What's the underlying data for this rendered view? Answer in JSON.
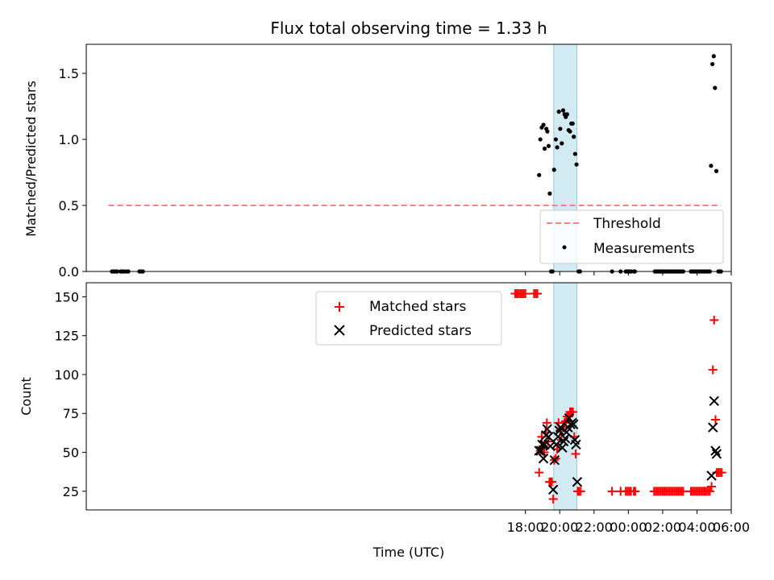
{
  "chart_data": [
    {
      "type": "scatter",
      "title": "Flux total observing time = 1.33 h",
      "ylabel": "Matched/Predicted stars",
      "xlim": [
        -7.6,
        30.0
      ],
      "ylim": [
        0,
        1.72
      ],
      "yticks": [
        0.0,
        0.5,
        1.0,
        1.5
      ],
      "ytick_labels": [
        "0.0",
        "0.5",
        "1.0",
        "1.5"
      ],
      "shaded_region": {
        "x": [
          19.65,
          21.0
        ],
        "color": "#add8e6"
      },
      "legend_position": "lower right",
      "threshold": {
        "name": "Threshold",
        "y": 0.5,
        "x": [
          -6.3,
          29.4
        ],
        "color": "#ff8080"
      },
      "series": [
        {
          "name": "Measurements",
          "color": "#000000",
          "marker": "dot",
          "points": [
            [
              -6.1,
              0
            ],
            [
              -6.0,
              0
            ],
            [
              -5.9,
              0
            ],
            [
              -5.8,
              0
            ],
            [
              -5.6,
              0
            ],
            [
              -5.5,
              0
            ],
            [
              -5.4,
              0
            ],
            [
              -5.25,
              0
            ],
            [
              -5.15,
              0
            ],
            [
              -4.5,
              0
            ],
            [
              -4.4,
              0
            ],
            [
              -4.3,
              0
            ],
            [
              18.8,
              0.73
            ],
            [
              18.87,
              1.0
            ],
            [
              18.95,
              1.09
            ],
            [
              19.05,
              1.11
            ],
            [
              19.12,
              0.93
            ],
            [
              19.22,
              1.08
            ],
            [
              19.28,
              1.06
            ],
            [
              19.35,
              0.95
            ],
            [
              19.42,
              0.59
            ],
            [
              19.5,
              0
            ],
            [
              19.58,
              0
            ],
            [
              19.67,
              0.77
            ],
            [
              19.77,
              1.0
            ],
            [
              19.85,
              0.94
            ],
            [
              19.95,
              1.21
            ],
            [
              20.03,
              1.08
            ],
            [
              20.12,
              0.97
            ],
            [
              20.2,
              1.22
            ],
            [
              20.28,
              1.19
            ],
            [
              20.35,
              1.17
            ],
            [
              20.43,
              1.19
            ],
            [
              20.52,
              1.07
            ],
            [
              20.6,
              1.06
            ],
            [
              20.68,
              1.12
            ],
            [
              20.75,
              1.12
            ],
            [
              20.82,
              1.02
            ],
            [
              20.9,
              0.89
            ],
            [
              20.98,
              0.81
            ],
            [
              21.1,
              0
            ],
            [
              21.18,
              0
            ],
            [
              23.05,
              0
            ],
            [
              23.55,
              0
            ],
            [
              23.85,
              0
            ],
            [
              23.95,
              0
            ],
            [
              24.0,
              0
            ],
            [
              24.08,
              0
            ],
            [
              24.15,
              0
            ],
            [
              24.32,
              0
            ],
            [
              24.38,
              0
            ],
            [
              25.55,
              0
            ],
            [
              25.63,
              0
            ],
            [
              25.7,
              0
            ],
            [
              25.78,
              0
            ],
            [
              25.85,
              0
            ],
            [
              25.92,
              0
            ],
            [
              26.0,
              0
            ],
            [
              26.1,
              0
            ],
            [
              26.2,
              0
            ],
            [
              26.3,
              0
            ],
            [
              26.4,
              0
            ],
            [
              26.5,
              0
            ],
            [
              26.6,
              0
            ],
            [
              26.7,
              0
            ],
            [
              26.8,
              0
            ],
            [
              26.9,
              0
            ],
            [
              27.0,
              0
            ],
            [
              27.1,
              0
            ],
            [
              27.2,
              0
            ],
            [
              27.65,
              0
            ],
            [
              27.75,
              0
            ],
            [
              27.85,
              0
            ],
            [
              27.95,
              0
            ],
            [
              28.05,
              0
            ],
            [
              28.15,
              0
            ],
            [
              28.25,
              0
            ],
            [
              28.35,
              0
            ],
            [
              28.45,
              0
            ],
            [
              28.55,
              0
            ],
            [
              28.65,
              0
            ],
            [
              28.75,
              0
            ],
            [
              28.82,
              0.8
            ],
            [
              28.9,
              1.57
            ],
            [
              28.98,
              1.63
            ],
            [
              29.05,
              1.39
            ],
            [
              29.13,
              0.76
            ],
            [
              29.25,
              0
            ],
            [
              29.32,
              0
            ],
            [
              29.4,
              0
            ]
          ]
        }
      ]
    },
    {
      "type": "scatter",
      "xlabel": "Time (UTC)",
      "ylabel": "Count",
      "xlim": [
        -7.6,
        30.0
      ],
      "ylim": [
        13,
        159
      ],
      "xticks": [
        18,
        20,
        22,
        24,
        26,
        28,
        30
      ],
      "xtick_labels": [
        "18:00",
        "20:00",
        "22:00",
        "00:00",
        "02:00",
        "04:00",
        "06:00"
      ],
      "yticks": [
        25,
        50,
        75,
        100,
        125,
        150
      ],
      "ytick_labels": [
        "25",
        "50",
        "75",
        "100",
        "125",
        "150"
      ],
      "shaded_region": {
        "x": [
          19.65,
          21.0
        ],
        "color": "#add8e6"
      },
      "legend_position": "top-center",
      "series": [
        {
          "name": "Matched stars",
          "color": "#ff0000",
          "marker": "plus",
          "points": [
            [
              17.4,
              152
            ],
            [
              17.5,
              152
            ],
            [
              17.6,
              152
            ],
            [
              17.7,
              152
            ],
            [
              17.8,
              152
            ],
            [
              17.9,
              152
            ],
            [
              18.0,
              152
            ],
            [
              18.5,
              152
            ],
            [
              18.6,
              152
            ],
            [
              18.7,
              152
            ],
            [
              18.8,
              37
            ],
            [
              18.87,
              51
            ],
            [
              18.95,
              60
            ],
            [
              19.02,
              54
            ],
            [
              19.1,
              50
            ],
            [
              19.17,
              63
            ],
            [
              19.25,
              69
            ],
            [
              19.32,
              57
            ],
            [
              19.4,
              31
            ],
            [
              19.48,
              31
            ],
            [
              19.55,
              31
            ],
            [
              19.62,
              20
            ],
            [
              19.68,
              45
            ],
            [
              19.77,
              46
            ],
            [
              19.85,
              52
            ],
            [
              19.93,
              69
            ],
            [
              20.02,
              64
            ],
            [
              20.1,
              58
            ],
            [
              20.18,
              66
            ],
            [
              20.27,
              69
            ],
            [
              20.35,
              70
            ],
            [
              20.43,
              73
            ],
            [
              20.52,
              73
            ],
            [
              20.6,
              76
            ],
            [
              20.68,
              76
            ],
            [
              20.77,
              76
            ],
            [
              20.85,
              60
            ],
            [
              20.93,
              49
            ],
            [
              21.05,
              25
            ],
            [
              21.12,
              25
            ],
            [
              21.22,
              25
            ],
            [
              23.05,
              25
            ],
            [
              23.55,
              25
            ],
            [
              23.85,
              25
            ],
            [
              23.95,
              25
            ],
            [
              24.05,
              25
            ],
            [
              24.15,
              25
            ],
            [
              24.32,
              25
            ],
            [
              24.4,
              25
            ],
            [
              25.5,
              25
            ],
            [
              25.6,
              25
            ],
            [
              25.7,
              25
            ],
            [
              25.8,
              25
            ],
            [
              25.9,
              25
            ],
            [
              26.0,
              25
            ],
            [
              26.1,
              25
            ],
            [
              26.2,
              25
            ],
            [
              26.3,
              25
            ],
            [
              26.4,
              25
            ],
            [
              26.5,
              25
            ],
            [
              26.6,
              25
            ],
            [
              26.7,
              25
            ],
            [
              26.8,
              25
            ],
            [
              26.9,
              25
            ],
            [
              27.0,
              25
            ],
            [
              27.1,
              25
            ],
            [
              27.2,
              25
            ],
            [
              27.65,
              25
            ],
            [
              27.75,
              25
            ],
            [
              27.85,
              25
            ],
            [
              27.95,
              25
            ],
            [
              28.05,
              25
            ],
            [
              28.15,
              25
            ],
            [
              28.25,
              25
            ],
            [
              28.35,
              25
            ],
            [
              28.45,
              25
            ],
            [
              28.55,
              25
            ],
            [
              28.65,
              25
            ],
            [
              28.75,
              25
            ],
            [
              28.85,
              28
            ],
            [
              28.93,
              103
            ],
            [
              29.0,
              135
            ],
            [
              29.08,
              71
            ],
            [
              29.15,
              37
            ],
            [
              29.25,
              37
            ],
            [
              29.35,
              37
            ],
            [
              29.45,
              37
            ]
          ]
        },
        {
          "name": "Predicted stars",
          "color": "#000000",
          "marker": "x",
          "points": [
            [
              18.8,
              51
            ],
            [
              18.9,
              51
            ],
            [
              18.98,
              55
            ],
            [
              19.05,
              46
            ],
            [
              19.12,
              55
            ],
            [
              19.2,
              61
            ],
            [
              19.27,
              65
            ],
            [
              19.35,
              60
            ],
            [
              19.45,
              54
            ],
            [
              19.62,
              26
            ],
            [
              19.7,
              45
            ],
            [
              19.8,
              55
            ],
            [
              19.9,
              60
            ],
            [
              19.98,
              64
            ],
            [
              20.05,
              66
            ],
            [
              20.15,
              53
            ],
            [
              20.23,
              57
            ],
            [
              20.32,
              59
            ],
            [
              20.4,
              63
            ],
            [
              20.48,
              66
            ],
            [
              20.55,
              72
            ],
            [
              20.63,
              68
            ],
            [
              20.72,
              69
            ],
            [
              20.8,
              68
            ],
            [
              20.88,
              58
            ],
            [
              20.95,
              55
            ],
            [
              21.02,
              31
            ],
            [
              28.85,
              35
            ],
            [
              28.93,
              66
            ],
            [
              29.0,
              83
            ],
            [
              29.08,
              51
            ],
            [
              29.15,
              49
            ]
          ]
        }
      ]
    }
  ]
}
